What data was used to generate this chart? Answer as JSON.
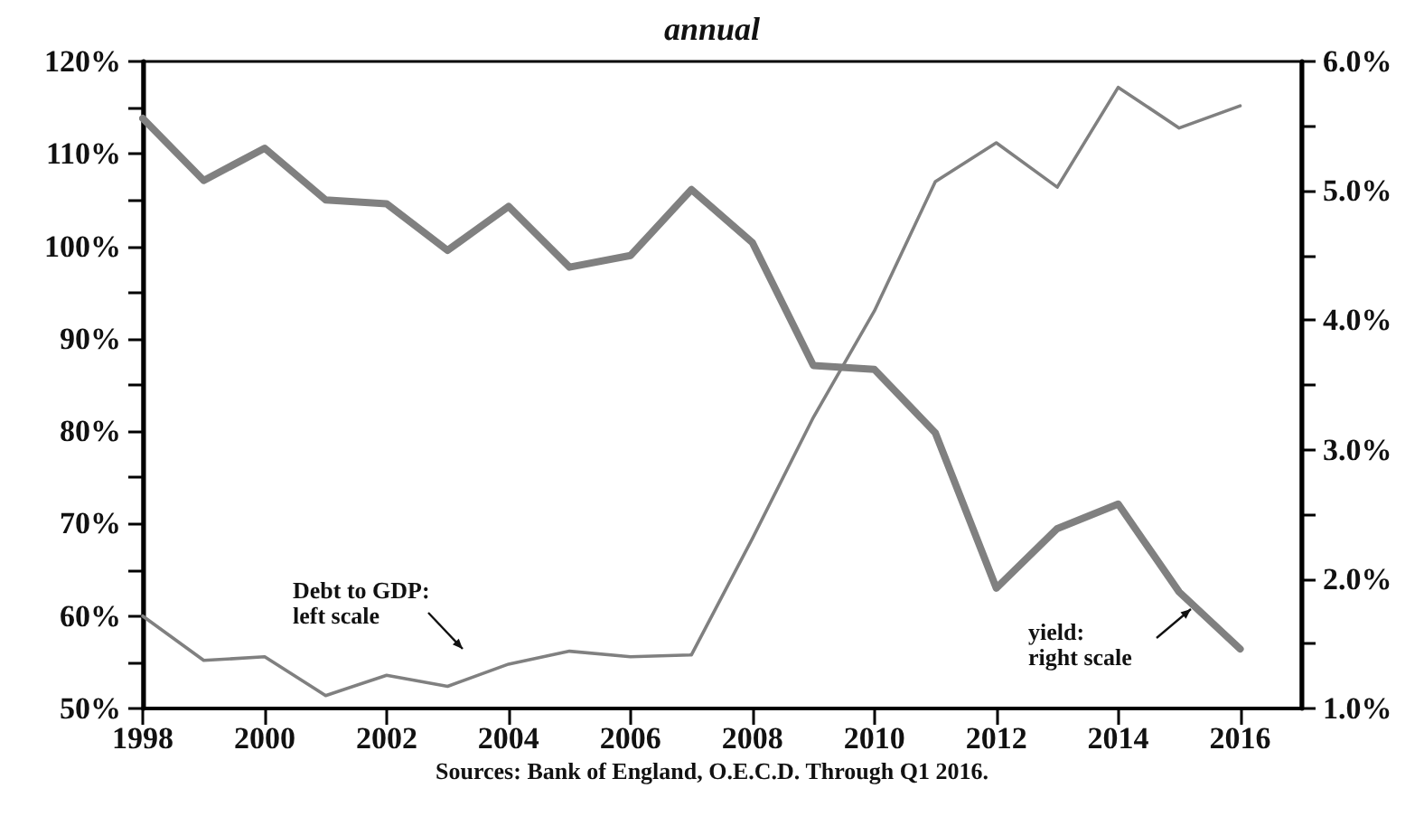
{
  "chart_data": {
    "type": "line",
    "title": "annual",
    "x": [
      1998,
      1999,
      2000,
      2001,
      2002,
      2003,
      2004,
      2005,
      2006,
      2007,
      2008,
      2009,
      2010,
      2011,
      2012,
      2013,
      2014,
      2015,
      2016
    ],
    "series": [
      {
        "color": "#808080",
        "values": [
          60,
          55.2,
          55.6,
          51.4,
          53.6,
          52.4,
          54.8,
          56.2,
          55.6,
          55.8,
          68.4,
          81.5,
          93,
          107,
          111.2,
          106.4,
          117.2,
          112.8,
          115.2
        ]
      },
      {
        "color": "#808080",
        "axis": "y2",
        "values": [
          5.56,
          5.08,
          5.33,
          4.93,
          4.9,
          4.54,
          4.88,
          4.41,
          4.5,
          5.01,
          4.6,
          3.65,
          3.62,
          3.13,
          1.93,
          2.39,
          2.58,
          1.9,
          1.46
        ]
      }
    ],
    "xlim": [
      1998,
      2017
    ],
    "xticks": [
      1998,
      2000,
      2002,
      2004,
      2006,
      2008,
      2010,
      2012,
      2014,
      2016
    ],
    "ylim": [
      50,
      120
    ],
    "yticks": [
      {
        "value": 50,
        "label": "50%"
      },
      {
        "value": 55,
        "label": null
      },
      {
        "value": 60,
        "label": "60%"
      },
      {
        "value": 65,
        "label": null
      },
      {
        "value": 70,
        "label": "70%"
      },
      {
        "value": 75,
        "label": null
      },
      {
        "value": 80,
        "label": "80%"
      },
      {
        "value": 85,
        "label": null
      },
      {
        "value": 90,
        "label": "90%"
      },
      {
        "value": 95,
        "label": null
      },
      {
        "value": 100,
        "label": "100%"
      },
      {
        "value": 105,
        "label": null
      },
      {
        "value": 110,
        "label": "110%"
      },
      {
        "value": 115,
        "label": null
      },
      {
        "value": 120,
        "label": "120%"
      }
    ],
    "y2lim": [
      1,
      6
    ],
    "y2ticks": [
      {
        "value": 1,
        "label": "1.0%"
      },
      {
        "value": 1.5,
        "label": null
      },
      {
        "value": 2,
        "label": "2.0%"
      },
      {
        "value": 2.5,
        "label": null
      },
      {
        "value": 3,
        "label": "3.0%"
      },
      {
        "value": 3.5,
        "label": null
      },
      {
        "value": 4,
        "label": "4.0%"
      },
      {
        "value": 4.5,
        "label": null
      },
      {
        "value": 5,
        "label": "5.0%"
      },
      {
        "value": 5.5,
        "label": null
      },
      {
        "value": 6,
        "label": "6.0%"
      }
    ],
    "grid": false,
    "marker": "none",
    "line_style": "solid",
    "annotations": [
      "Sources: Bank of England, O.E.C.D. Through Q1 2016.",
      "Debt to GDP:\nleft scale",
      "yield:\nright scale"
    ]
  }
}
